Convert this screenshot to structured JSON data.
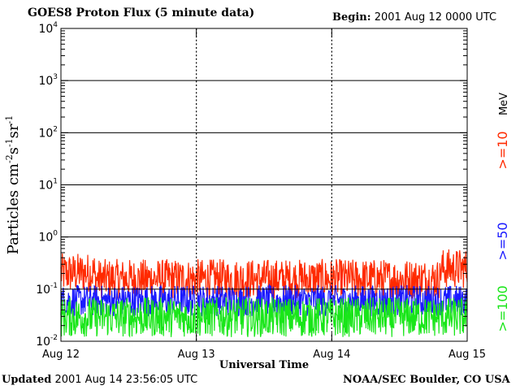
{
  "header": {
    "title": "GOES8 Proton Flux (5 minute data)",
    "begin_label": "Begin:",
    "begin_value": "2001 Aug 12 0000 UTC"
  },
  "footer": {
    "updated_label": "Updated",
    "updated_value": "2001 Aug 14 23:56:05 UTC",
    "credit": "NOAA/SEC Boulder, CO USA"
  },
  "chart_data": {
    "type": "line",
    "title": "GOES8 Proton Flux (5 minute data)",
    "xlabel": "Universal Time",
    "ylabel": "Particles cm⁻²s⁻¹sr⁻¹",
    "ylabel_parts": {
      "main": "Particles cm",
      "sup1": "-2",
      "s1": "s",
      "sup2": "-1",
      "s2": "sr",
      "sup3": "-1"
    },
    "yscale": "log",
    "ylim": [
      0.01,
      10000
    ],
    "xlim": [
      0,
      3
    ],
    "x_unit": "days since 2001 Aug 12 0000 UTC",
    "x_ticks": [
      {
        "value": 0,
        "label": "Aug 12"
      },
      {
        "value": 1,
        "label": "Aug 13"
      },
      {
        "value": 2,
        "label": "Aug 14"
      },
      {
        "value": 3,
        "label": "Aug 15"
      }
    ],
    "y_ticks": [
      {
        "value": 0.01,
        "base": "10",
        "exp": "-2"
      },
      {
        "value": 0.1,
        "base": "10",
        "exp": "-1"
      },
      {
        "value": 1,
        "base": "10",
        "exp": "0"
      },
      {
        "value": 10,
        "base": "10",
        "exp": "1"
      },
      {
        "value": 100,
        "base": "10",
        "exp": "2"
      },
      {
        "value": 1000,
        "base": "10",
        "exp": "3"
      },
      {
        "value": 10000,
        "base": "10",
        "exp": "4"
      }
    ],
    "grid": "horizontal at decades; dashed vertical at day boundaries",
    "legend_placement": "right, vertical",
    "unit_label": "MeV",
    "series": [
      {
        "name": ">=10",
        "color": "#ff2a00",
        "typical_min": 0.07,
        "typical_max": 0.35,
        "start_level": 0.2,
        "end_level": 0.35
      },
      {
        "name": ">=50",
        "color": "#1a1aff",
        "typical_min": 0.03,
        "typical_max": 0.12
      },
      {
        "name": ">=100",
        "color": "#19e619",
        "typical_min": 0.012,
        "typical_max": 0.07
      }
    ]
  }
}
